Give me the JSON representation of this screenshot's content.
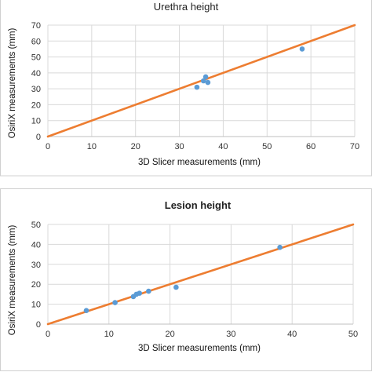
{
  "chart_data": [
    {
      "type": "scatter",
      "title": "Urethra height",
      "xlabel": "3D Slicer measurements (mm)",
      "ylabel": "OsiriX measurements (mm)",
      "xlim": [
        0,
        70
      ],
      "ylim": [
        0,
        70
      ],
      "xticks": [
        "0",
        "10",
        "20",
        "30",
        "40",
        "50",
        "60",
        "70"
      ],
      "yticks": [
        "0",
        "10",
        "20",
        "30",
        "40",
        "50",
        "60",
        "70"
      ],
      "grid": true,
      "points": [
        {
          "x": 34,
          "y": 31
        },
        {
          "x": 35.5,
          "y": 35
        },
        {
          "x": 36,
          "y": 37.5
        },
        {
          "x": 36.5,
          "y": 34
        },
        {
          "x": 58,
          "y": 55
        }
      ],
      "line": {
        "x": [
          0,
          70
        ],
        "y": [
          0,
          70
        ]
      },
      "colors": {
        "points": "#5b9bd5",
        "line": "#ed7d31"
      }
    },
    {
      "type": "scatter",
      "title": "Lesion height",
      "xlabel": "3D Slicer measurements (mm)",
      "ylabel": "OsiriX measurements (mm)",
      "xlim": [
        0,
        50
      ],
      "ylim": [
        0,
        50
      ],
      "xticks": [
        "0",
        "10",
        "20",
        "30",
        "40",
        "50"
      ],
      "yticks": [
        "0",
        "10",
        "20",
        "30",
        "40",
        "50"
      ],
      "grid": true,
      "points": [
        {
          "x": 6.3,
          "y": 6.8
        },
        {
          "x": 11,
          "y": 10.8
        },
        {
          "x": 14,
          "y": 13.8
        },
        {
          "x": 14.5,
          "y": 15
        },
        {
          "x": 15,
          "y": 15.5
        },
        {
          "x": 16.5,
          "y": 16.5
        },
        {
          "x": 21,
          "y": 18.5
        },
        {
          "x": 38,
          "y": 38.5
        }
      ],
      "line": {
        "x": [
          0,
          50
        ],
        "y": [
          0,
          50
        ]
      },
      "colors": {
        "points": "#5b9bd5",
        "line": "#ed7d31"
      }
    }
  ]
}
